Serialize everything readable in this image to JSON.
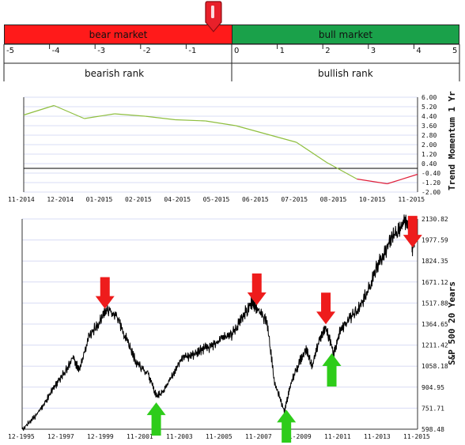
{
  "gauge": {
    "bear_label": "bear market",
    "bull_label": "bull market",
    "bearish_rank_label": "bearish rank",
    "bullish_rank_label": "bullish rank",
    "scale_min": -5,
    "scale_max": 5,
    "ticks": [
      "-5",
      "-4",
      "-3",
      "-2",
      "-1",
      "0",
      "1",
      "2",
      "3",
      "4",
      "5"
    ],
    "indicator_value": -0.4,
    "bear_color": "#ff1a1a",
    "bull_color": "#1aa14a",
    "indicator_color": "#e8202a"
  },
  "chart_data": [
    {
      "type": "line",
      "ylabel": "Trend Momentum 1 Yr",
      "ylim": [
        -2.0,
        6.0
      ],
      "yticks": [
        "6.00",
        "5.20",
        "4.40",
        "3.60",
        "2.80",
        "2.00",
        "1.20",
        "0.40",
        "-0.40",
        "-1.20",
        "-2.00"
      ],
      "ytick_values": [
        6.0,
        5.2,
        4.4,
        3.6,
        2.8,
        2.0,
        1.2,
        0.4,
        -0.4,
        -1.2,
        -2.0
      ],
      "xticks": [
        "11-2014",
        "12-2014",
        "01-2015",
        "02-2015",
        "04-2015",
        "05-2015",
        "06-2015",
        "07-2015",
        "08-2015",
        "10-2015",
        "11-2015"
      ],
      "zero_line": 0,
      "positive_color": "#8fbf3f",
      "negative_color": "#e0203a",
      "x": [
        "2014-11",
        "2014-12",
        "2015-01",
        "2015-02",
        "2015-03",
        "2015-04",
        "2015-05",
        "2015-06",
        "2015-07",
        "2015-08",
        "2015-08b",
        "2015-09",
        "2015-10",
        "2015-11"
      ],
      "values": [
        4.5,
        5.3,
        4.2,
        4.6,
        4.4,
        4.1,
        4.0,
        3.6,
        2.9,
        2.2,
        0.5,
        -0.9,
        -1.3,
        -0.5
      ]
    },
    {
      "type": "line",
      "ylabel": "S&P 500 20 Years",
      "ylim": [
        598.48,
        2200
      ],
      "yticks": [
        "2130.82",
        "1977.59",
        "1824.35",
        "1671.12",
        "1517.88",
        "1364.65",
        "1211.42",
        "1058.18",
        "904.95",
        "751.71",
        "598.48"
      ],
      "ytick_values": [
        2130.82,
        1977.59,
        1824.35,
        1671.12,
        1517.88,
        1364.65,
        1211.42,
        1058.18,
        904.95,
        751.71,
        598.48
      ],
      "xticks": [
        "12-1995",
        "12-1997",
        "12-1999",
        "11-2001",
        "11-2003",
        "11-2005",
        "11-2007",
        "11-2009",
        "11-2011",
        "11-2013",
        "11-2015"
      ],
      "line_color": "#000000",
      "x": [
        1995.9,
        1996.5,
        1997.0,
        1997.5,
        1997.9,
        1998.5,
        1998.8,
        1999.3,
        1999.9,
        2000.2,
        2000.7,
        2001.2,
        2001.7,
        2002.3,
        2002.7,
        2003.0,
        2003.5,
        2004.0,
        2004.5,
        2005.0,
        2005.5,
        2006.0,
        2006.5,
        2007.0,
        2007.5,
        2007.8,
        2008.3,
        2008.7,
        2009.2,
        2009.5,
        2010.0,
        2010.3,
        2010.6,
        2011.0,
        2011.3,
        2011.7,
        2012.0,
        2012.5,
        2013.0,
        2013.5,
        2014.0,
        2014.5,
        2015.0,
        2015.4,
        2015.6,
        2015.7,
        2015.9
      ],
      "values": [
        600,
        680,
        780,
        900,
        980,
        1120,
        1020,
        1280,
        1400,
        1480,
        1420,
        1250,
        1080,
        1000,
        840,
        860,
        980,
        1120,
        1130,
        1180,
        1200,
        1260,
        1280,
        1400,
        1520,
        1480,
        1380,
        950,
        720,
        920,
        1100,
        1180,
        1060,
        1260,
        1340,
        1150,
        1300,
        1400,
        1480,
        1630,
        1820,
        1950,
        2060,
        2120,
        2090,
        1900,
        2080
      ],
      "arrows": [
        {
          "x": 2000.1,
          "direction": "down",
          "color": "#ee1c1c"
        },
        {
          "x": 2002.7,
          "direction": "up",
          "color": "#2ecc1a"
        },
        {
          "x": 2007.8,
          "direction": "down",
          "color": "#ee1c1c"
        },
        {
          "x": 2009.3,
          "direction": "up",
          "color": "#2ecc1a"
        },
        {
          "x": 2011.3,
          "direction": "down",
          "color": "#ee1c1c"
        },
        {
          "x": 2011.6,
          "direction": "up",
          "color": "#2ecc1a"
        },
        {
          "x": 2015.7,
          "direction": "down",
          "color": "#ee1c1c"
        }
      ]
    }
  ]
}
